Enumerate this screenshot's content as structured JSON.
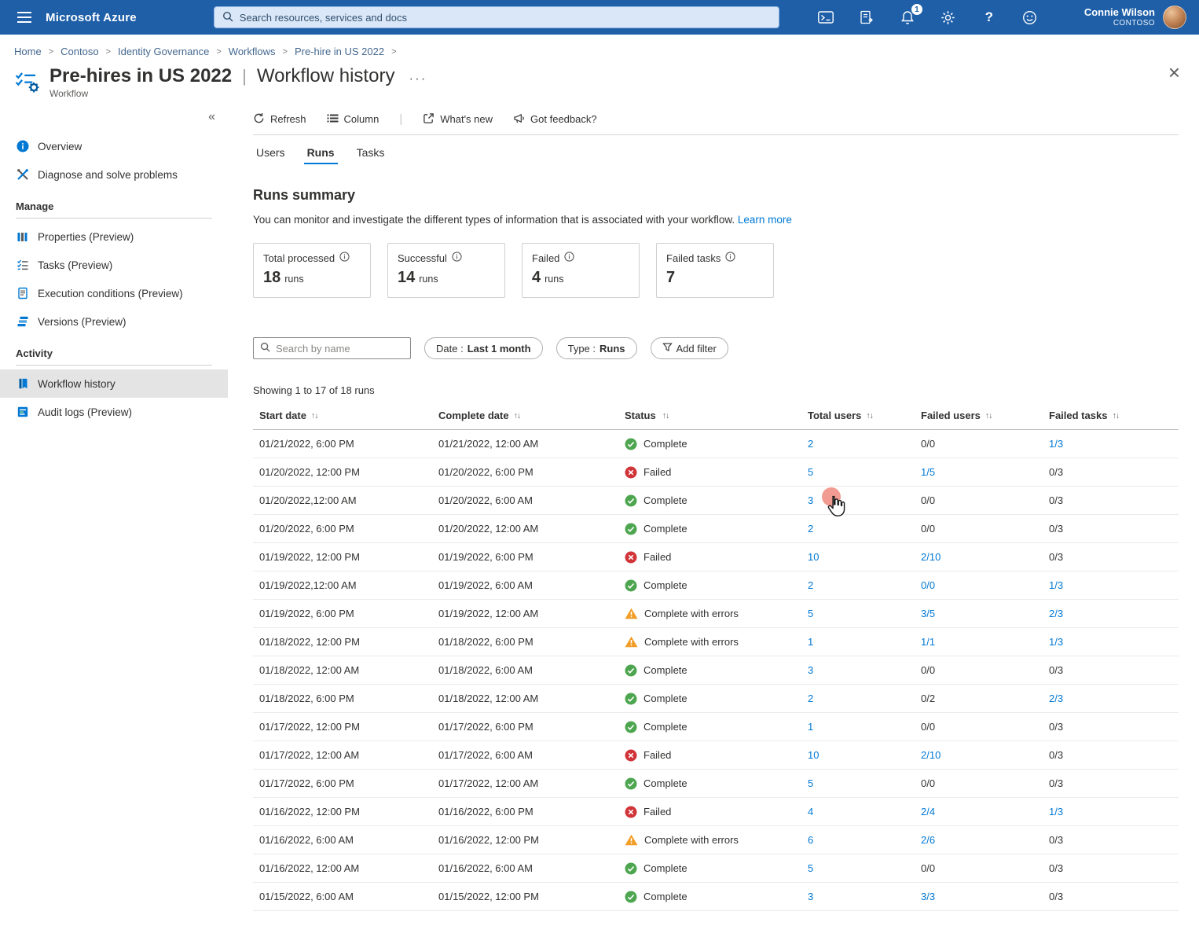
{
  "topbar": {
    "brand": "Microsoft Azure",
    "search_placeholder": "Search resources, services and docs",
    "notification_badge": "1",
    "user_name": "Connie Wilson",
    "user_org": "CONTOSO"
  },
  "breadcrumb": {
    "items": [
      "Home",
      "Contoso",
      "Identity Governance",
      "Workflows",
      "Pre-hire in US 2022"
    ]
  },
  "page": {
    "title": "Pre-hires in US 2022",
    "view": "Workflow history",
    "type_label": "Workflow"
  },
  "sidebar": {
    "overview": "Overview",
    "diagnose": "Diagnose and solve problems",
    "manage_header": "Manage",
    "properties": "Properties (Preview)",
    "tasks": "Tasks (Preview)",
    "execution_conditions": "Execution conditions (Preview)",
    "versions": "Versions (Preview)",
    "activity_header": "Activity",
    "workflow_history": "Workflow history",
    "audit_logs": "Audit logs (Preview)"
  },
  "toolbar": {
    "refresh": "Refresh",
    "column": "Column",
    "whats_new": "What's new",
    "feedback": "Got feedback?"
  },
  "tabs": {
    "users": "Users",
    "runs": "Runs",
    "tasks": "Tasks",
    "active": "Runs"
  },
  "summary": {
    "title": "Runs summary",
    "description": "You can monitor and investigate the different types of information that is associated with your workflow.",
    "learn_more": "Learn more",
    "cards": [
      {
        "label": "Total processed",
        "value": "18",
        "unit": "runs"
      },
      {
        "label": "Successful",
        "value": "14",
        "unit": "runs"
      },
      {
        "label": "Failed",
        "value": "4",
        "unit": "runs"
      },
      {
        "label": "Failed tasks",
        "value": "7",
        "unit": ""
      }
    ]
  },
  "filters": {
    "search_placeholder": "Search by name",
    "date_label": "Date :",
    "date_value": "Last 1 month",
    "type_label": "Type :",
    "type_value": "Runs",
    "add_filter": "Add filter"
  },
  "table": {
    "showing": "Showing 1 to 17 of 18 runs",
    "columns": [
      "Start date",
      "Complete date",
      "Status",
      "Total users",
      "Failed users",
      "Failed tasks"
    ],
    "status_colors": {
      "complete": "#4da64f",
      "failed": "#d13438",
      "warning": "#f29d25"
    },
    "link_color": "#0078d4",
    "rows": [
      {
        "start": "01/21/2022, 6:00 PM",
        "complete": "01/21/2022, 12:00 AM",
        "status": "Complete",
        "status_type": "complete",
        "total_users": "2",
        "failed_users": "0/0",
        "failed_users_link": false,
        "failed_tasks": "1/3",
        "failed_tasks_link": true
      },
      {
        "start": "01/20/2022, 12:00 PM",
        "complete": "01/20/2022, 6:00 PM",
        "status": "Failed",
        "status_type": "failed",
        "total_users": "5",
        "failed_users": "1/5",
        "failed_users_link": true,
        "failed_tasks": "0/3",
        "failed_tasks_link": false
      },
      {
        "start": "01/20/2022,12:00 AM",
        "complete": "01/20/2022, 6:00 AM",
        "status": "Complete",
        "status_type": "complete",
        "total_users": "3",
        "failed_users": "0/0",
        "failed_users_link": false,
        "failed_tasks": "0/3",
        "failed_tasks_link": false
      },
      {
        "start": "01/20/2022, 6:00 PM",
        "complete": "01/20/2022, 12:00 AM",
        "status": "Complete",
        "status_type": "complete",
        "total_users": "2",
        "failed_users": "0/0",
        "failed_users_link": false,
        "failed_tasks": "0/3",
        "failed_tasks_link": false
      },
      {
        "start": "01/19/2022, 12:00 PM",
        "complete": "01/19/2022, 6:00 PM",
        "status": "Failed",
        "status_type": "failed",
        "total_users": "10",
        "failed_users": "2/10",
        "failed_users_link": true,
        "failed_tasks": "0/3",
        "failed_tasks_link": false
      },
      {
        "start": "01/19/2022,12:00 AM",
        "complete": "01/19/2022, 6:00 AM",
        "status": "Complete",
        "status_type": "complete",
        "total_users": "2",
        "failed_users": "0/0",
        "failed_users_link": true,
        "failed_tasks": "1/3",
        "failed_tasks_link": true
      },
      {
        "start": "01/19/2022, 6:00 PM",
        "complete": "01/19/2022, 12:00 AM",
        "status": "Complete with errors",
        "status_type": "warning",
        "total_users": "5",
        "failed_users": "3/5",
        "failed_users_link": true,
        "failed_tasks": "2/3",
        "failed_tasks_link": true
      },
      {
        "start": "01/18/2022, 12:00 PM",
        "complete": "01/18/2022, 6:00 PM",
        "status": "Complete with errors",
        "status_type": "warning",
        "total_users": "1",
        "failed_users": "1/1",
        "failed_users_link": true,
        "failed_tasks": "1/3",
        "failed_tasks_link": true
      },
      {
        "start": "01/18/2022, 12:00 AM",
        "complete": "01/18/2022, 6:00 AM",
        "status": "Complete",
        "status_type": "complete",
        "total_users": "3",
        "failed_users": "0/0",
        "failed_users_link": false,
        "failed_tasks": "0/3",
        "failed_tasks_link": false
      },
      {
        "start": "01/18/2022, 6:00 PM",
        "complete": "01/18/2022, 12:00 AM",
        "status": "Complete",
        "status_type": "complete",
        "total_users": "2",
        "failed_users": "0/2",
        "failed_users_link": false,
        "failed_tasks": "2/3",
        "failed_tasks_link": true
      },
      {
        "start": "01/17/2022, 12:00 PM",
        "complete": "01/17/2022, 6:00 PM",
        "status": "Complete",
        "status_type": "complete",
        "total_users": "1",
        "failed_users": "0/0",
        "failed_users_link": false,
        "failed_tasks": "0/3",
        "failed_tasks_link": false
      },
      {
        "start": "01/17/2022, 12:00 AM",
        "complete": "01/17/2022, 6:00 AM",
        "status": "Failed",
        "status_type": "failed",
        "total_users": "10",
        "failed_users": "2/10",
        "failed_users_link": true,
        "failed_tasks": "0/3",
        "failed_tasks_link": false
      },
      {
        "start": "01/17/2022, 6:00 PM",
        "complete": "01/17/2022, 12:00 AM",
        "status": "Complete",
        "status_type": "complete",
        "total_users": "5",
        "failed_users": "0/0",
        "failed_users_link": false,
        "failed_tasks": "0/3",
        "failed_tasks_link": false
      },
      {
        "start": "01/16/2022, 12:00 PM",
        "complete": "01/16/2022, 6:00 PM",
        "status": "Failed",
        "status_type": "failed",
        "total_users": "4",
        "failed_users": "2/4",
        "failed_users_link": true,
        "failed_tasks": "1/3",
        "failed_tasks_link": true
      },
      {
        "start": "01/16/2022, 6:00 AM",
        "complete": "01/16/2022, 12:00 PM",
        "status": "Complete with errors",
        "status_type": "warning",
        "total_users": "6",
        "failed_users": "2/6",
        "failed_users_link": true,
        "failed_tasks": "0/3",
        "failed_tasks_link": false
      },
      {
        "start": "01/16/2022, 12:00 AM",
        "complete": "01/16/2022, 6:00 AM",
        "status": "Complete",
        "status_type": "complete",
        "total_users": "5",
        "failed_users": "0/0",
        "failed_users_link": false,
        "failed_tasks": "0/3",
        "failed_tasks_link": false
      },
      {
        "start": "01/15/2022, 6:00 AM",
        "complete": "01/15/2022, 12:00 PM",
        "status": "Complete",
        "status_type": "complete",
        "total_users": "3",
        "failed_users": "3/3",
        "failed_users_link": true,
        "failed_tasks": "0/3",
        "failed_tasks_link": false
      }
    ]
  }
}
